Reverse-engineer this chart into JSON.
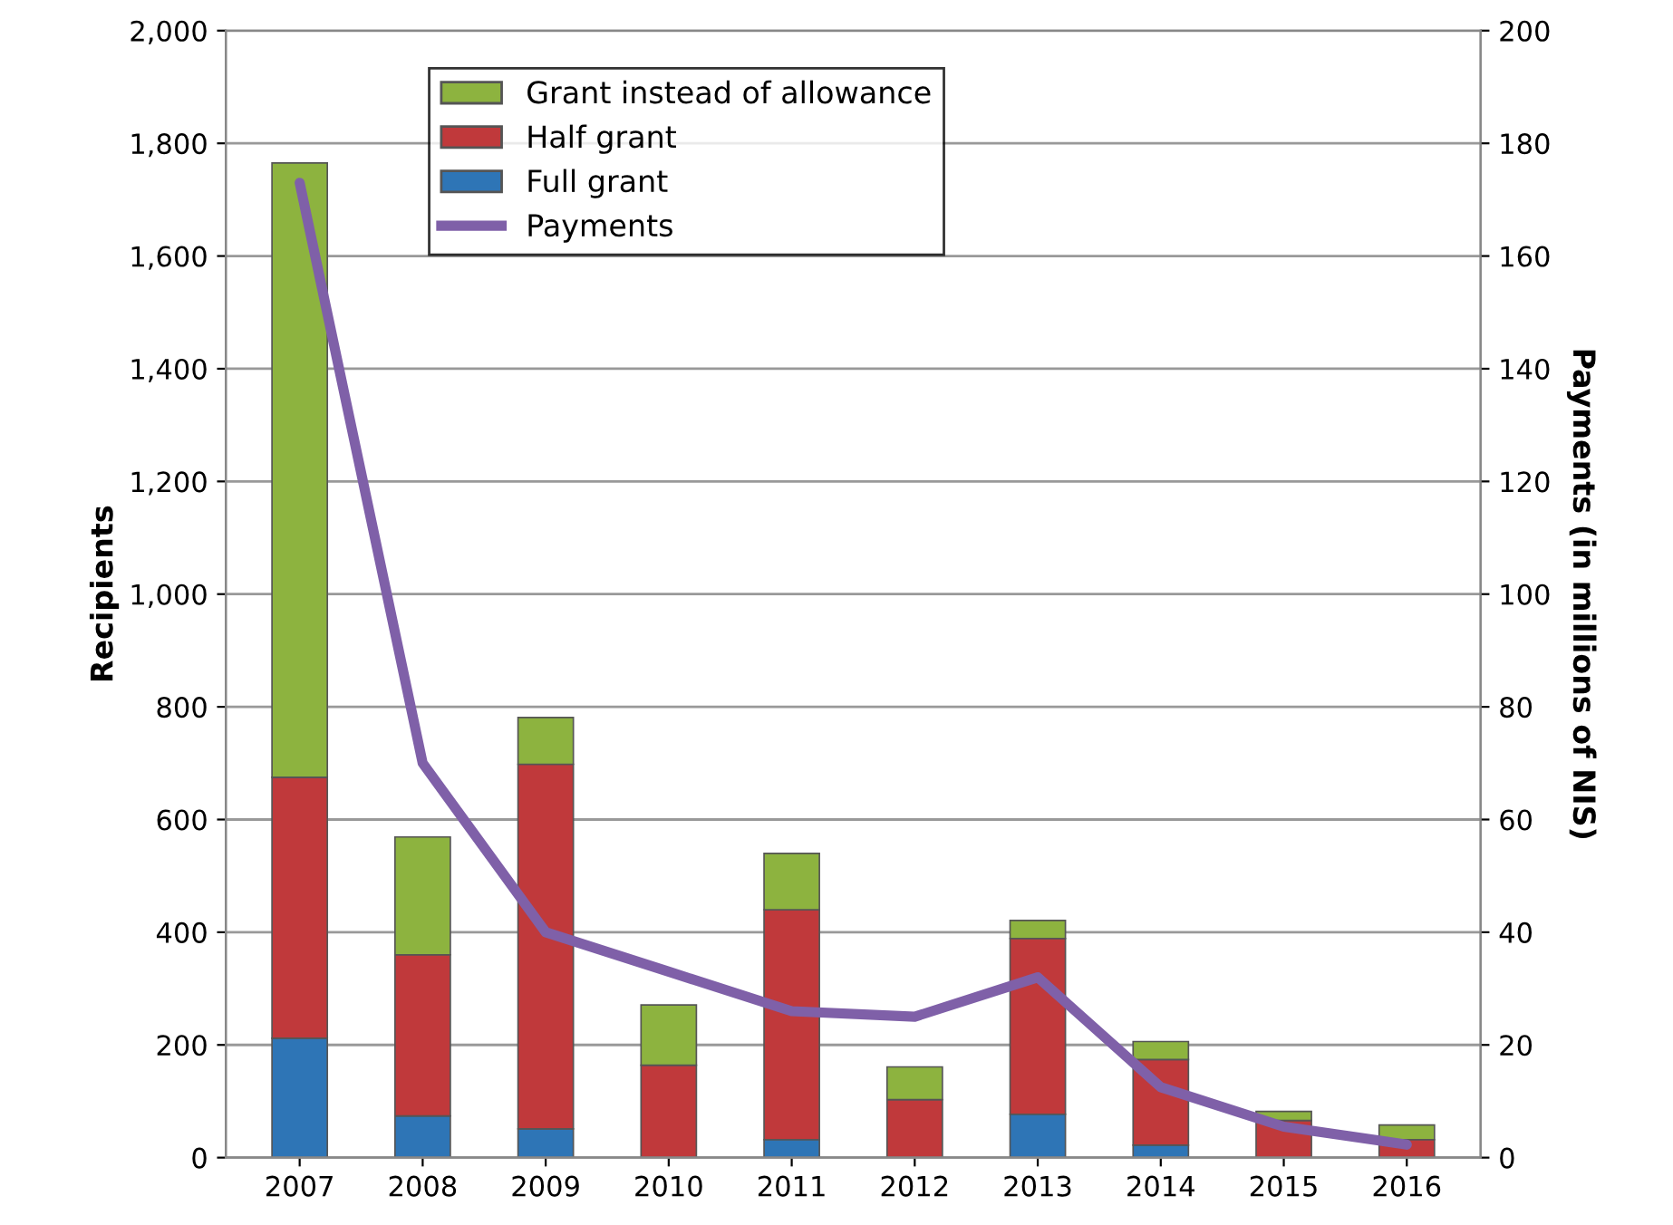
{
  "chart_data": {
    "type": "bar",
    "stacked": true,
    "categories": [
      "2007",
      "2008",
      "2009",
      "2010",
      "2011",
      "2012",
      "2013",
      "2014",
      "2015",
      "2016"
    ],
    "series": [
      {
        "name": "Full grant",
        "color": "#2e75b6",
        "values": [
          212,
          74,
          51,
          null,
          32,
          0,
          77,
          22,
          null,
          0
        ]
      },
      {
        "name": "Half grant",
        "color": "#c0393b",
        "values": [
          463,
          286,
          647,
          164,
          408,
          103,
          312,
          152,
          66,
          32
        ]
      },
      {
        "name": "Grant instead of allowance",
        "color": "#8db33f",
        "values": [
          1090,
          209,
          83,
          107,
          100,
          58,
          32,
          32,
          16,
          26
        ]
      },
      {
        "name": "Payments",
        "type": "line",
        "axis": "y2",
        "color": "#7f60a8",
        "marker": "none",
        "line_style": "solid",
        "values": [
          173,
          70,
          40,
          33,
          26,
          25,
          32,
          12.5,
          5.5,
          2.3
        ]
      }
    ],
    "ylabel": "Recipients",
    "y2label": "Payments (in millions of NIS)",
    "ylim": [
      0,
      2000
    ],
    "yticks": [
      {
        "value": 0,
        "label": "0"
      },
      {
        "value": 200,
        "label": "200"
      },
      {
        "value": 400,
        "label": "400"
      },
      {
        "value": 600,
        "label": "600"
      },
      {
        "value": 800,
        "label": "800"
      },
      {
        "value": 1000,
        "label": "1,000"
      },
      {
        "value": 1200,
        "label": "1,200"
      },
      {
        "value": 1400,
        "label": "1,400"
      },
      {
        "value": 1600,
        "label": "1,600"
      },
      {
        "value": 1800,
        "label": "1,800"
      },
      {
        "value": 2000,
        "label": "2,000"
      }
    ],
    "y2lim": [
      0,
      200
    ],
    "y2ticks": [
      0,
      20,
      40,
      60,
      80,
      100,
      120,
      140,
      160,
      180,
      200
    ],
    "grid": "y",
    "legend": "top left"
  }
}
